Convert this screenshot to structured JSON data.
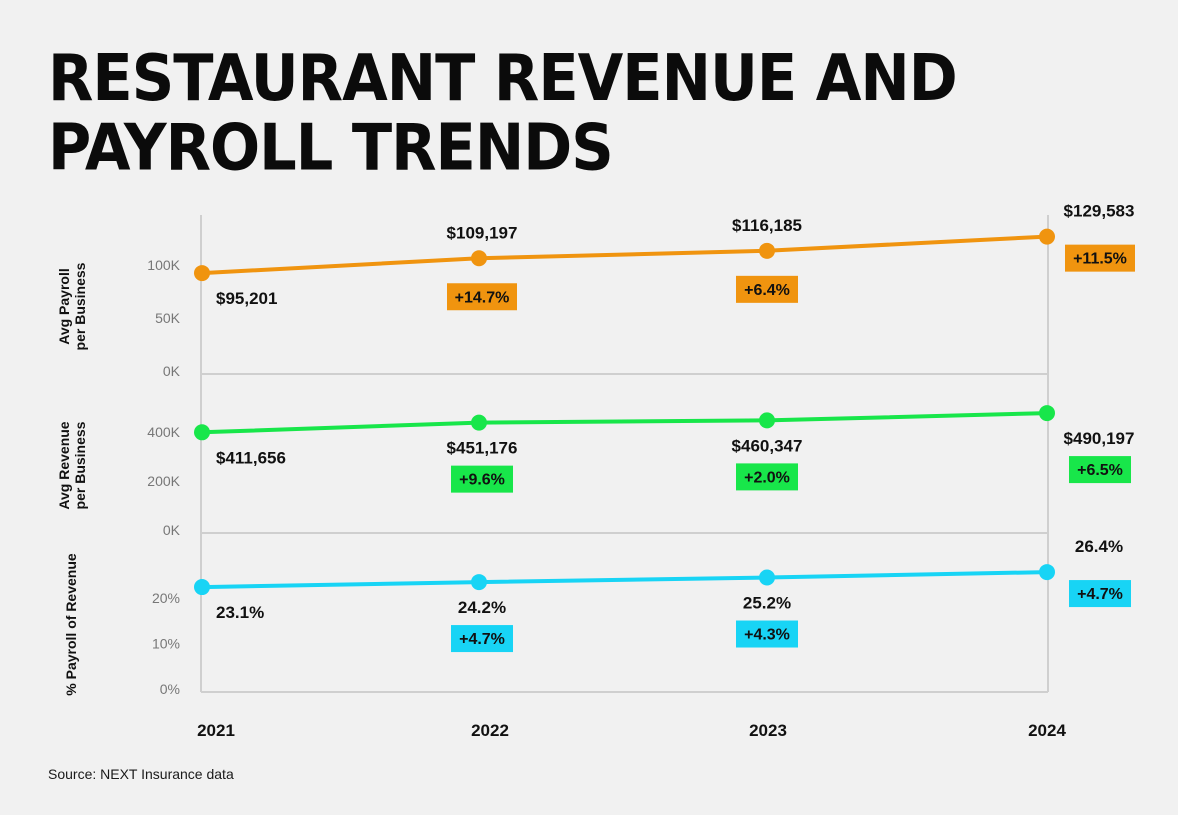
{
  "title_lines": [
    "RESTAURANT REVENUE AND",
    "PAYROLL TRENDS"
  ],
  "source": "Source: NEXT Insurance data",
  "colors": {
    "payroll": "#f0940f",
    "revenue": "#18e64a",
    "percent": "#18d4f5",
    "grid": "#cfcfcf",
    "tick": "#777777"
  },
  "chart_data": {
    "type": "line",
    "title": "RESTAURANT REVENUE AND PAYROLL TRENDS",
    "categories": [
      "2021",
      "2022",
      "2023",
      "2024"
    ],
    "panels": [
      {
        "id": "payroll",
        "ylabel_lines": [
          "Avg Payroll",
          "per Business"
        ],
        "ylim": [
          0,
          150000
        ],
        "yticks": [
          {
            "value": 0,
            "label": "0K"
          },
          {
            "value": 50000,
            "label": "50K"
          },
          {
            "value": 100000,
            "label": "100K"
          }
        ],
        "color_key": "payroll",
        "values": [
          95201,
          109197,
          116185,
          129583
        ],
        "value_labels": [
          "$95,201",
          "$109,197",
          "$116,185",
          "$129,583"
        ],
        "value_label_pos": [
          "below",
          "above",
          "above",
          "above"
        ],
        "changes": [
          null,
          "+14.7%",
          "+6.4%",
          "+11.5%"
        ]
      },
      {
        "id": "revenue",
        "ylabel_lines": [
          "Avg Revenue",
          "per Business"
        ],
        "ylim": [
          0,
          650000
        ],
        "yticks": [
          {
            "value": 0,
            "label": "0K"
          },
          {
            "value": 200000,
            "label": "200K"
          },
          {
            "value": 400000,
            "label": "400K"
          }
        ],
        "color_key": "revenue",
        "values": [
          411656,
          451176,
          460347,
          490197
        ],
        "value_labels": [
          "$411,656",
          "$451,176",
          "$460,347",
          "$490,197"
        ],
        "value_label_pos": [
          "below",
          "below",
          "below",
          "below"
        ],
        "changes": [
          null,
          "+9.6%",
          "+2.0%",
          "+6.5%"
        ]
      },
      {
        "id": "percent",
        "ylabel_lines": [
          "% Payroll of Revenue"
        ],
        "ylim": [
          0,
          35
        ],
        "yticks": [
          {
            "value": 0,
            "label": "0%"
          },
          {
            "value": 10,
            "label": "10%"
          },
          {
            "value": 20,
            "label": "20%"
          }
        ],
        "color_key": "percent",
        "values": [
          23.1,
          24.2,
          25.2,
          26.4
        ],
        "value_labels": [
          "23.1%",
          "24.2%",
          "25.2%",
          "26.4%"
        ],
        "value_label_pos": [
          "below",
          "below",
          "below",
          "above"
        ],
        "changes": [
          null,
          "+4.7%",
          "+4.3%",
          "+4.7%"
        ]
      }
    ]
  }
}
